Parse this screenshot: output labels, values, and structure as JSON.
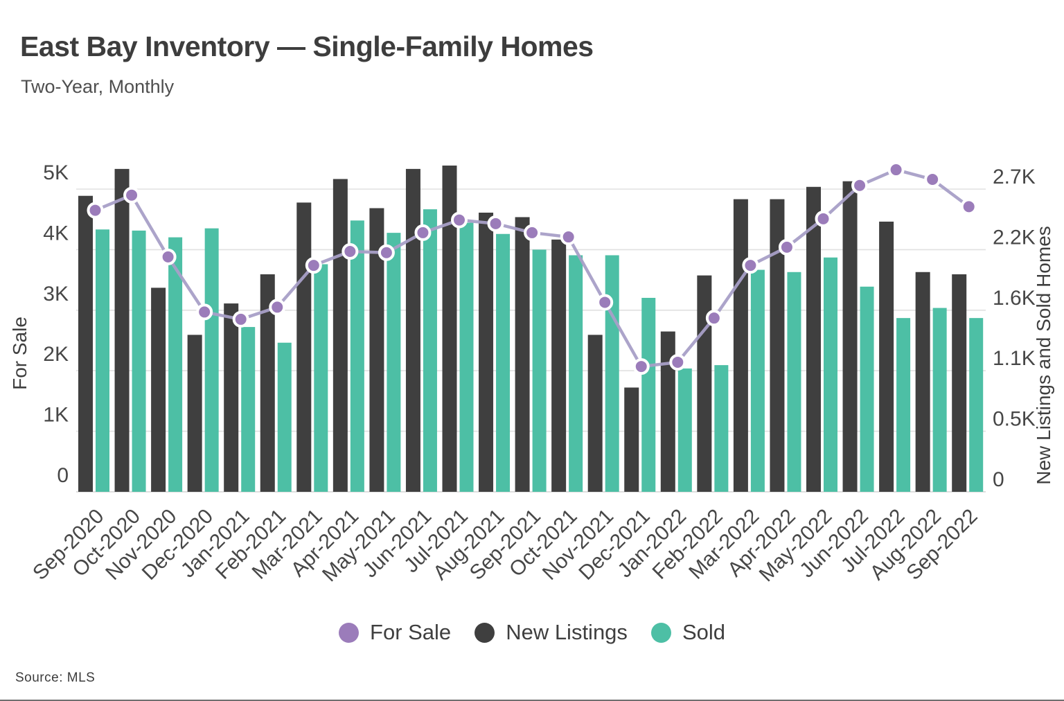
{
  "header": {
    "title": "East Bay Inventory — Single-Family Homes",
    "subtitle": "Two-Year, Monthly"
  },
  "source": {
    "text": "Source:  MLS"
  },
  "chart_data": {
    "type": "combo-bar-line",
    "title": "East Bay Inventory — Single-Family Homes",
    "subtitle": "Two-Year, Monthly",
    "grid": true,
    "grid_color": "#e0e0e0",
    "legend_position": "bottom",
    "categories": [
      "Sep-2020",
      "Oct-2020",
      "Nov-2020",
      "Dec-2020",
      "Jan-2021",
      "Feb-2021",
      "Mar-2021",
      "Apr-2021",
      "May-2021",
      "Jun-2021",
      "Jul-2021",
      "Aug-2021",
      "Sep-2021",
      "Oct-2021",
      "Nov-2021",
      "Dec-2021",
      "Jan-2022",
      "Feb-2022",
      "Mar-2022",
      "Apr-2022",
      "May-2022",
      "Jun-2022",
      "Jul-2022",
      "Aug-2022",
      "Sep-2022"
    ],
    "left_axis": {
      "label": "For Sale",
      "range": [
        0,
        5000
      ],
      "tick_labels": [
        "0",
        "1K",
        "2K",
        "3K",
        "4K",
        "5K"
      ],
      "tick_values": [
        0,
        1000,
        2000,
        3000,
        4000,
        5000
      ]
    },
    "right_axis": {
      "label": "New Listings and Sold Homes",
      "range": [
        0,
        2700
      ],
      "tick_labels": [
        "0",
        "0.5K",
        "1.1K",
        "1.6K",
        "2.2K",
        "2.7K"
      ],
      "tick_values": [
        0,
        540,
        1080,
        1620,
        2160,
        2700
      ]
    },
    "series": [
      {
        "name": "For Sale",
        "type": "line",
        "axis": "left",
        "color": "#9b7cba",
        "line_color": "#a89fc7",
        "values": [
          4650,
          4900,
          3880,
          2970,
          2850,
          3050,
          3740,
          3970,
          3950,
          4280,
          4490,
          4430,
          4280,
          4210,
          3130,
          2070,
          2140,
          2870,
          3740,
          4040,
          4510,
          5060,
          5320,
          5160,
          4710
        ]
      },
      {
        "name": "New Listings",
        "type": "bar",
        "axis": "right",
        "color": "#3f3f3f",
        "values": [
          2640,
          2880,
          1820,
          1400,
          1680,
          1940,
          2580,
          2790,
          2530,
          2880,
          2910,
          2490,
          2450,
          2250,
          1400,
          930,
          1430,
          1930,
          2610,
          2610,
          2720,
          2770,
          2410,
          1960,
          1940
        ]
      },
      {
        "name": "Sold",
        "type": "bar",
        "axis": "right",
        "color": "#4dbfa5",
        "values": [
          2340,
          2330,
          2270,
          2350,
          1470,
          1330,
          2030,
          2420,
          2310,
          2520,
          2400,
          2300,
          2160,
          2110,
          2110,
          1730,
          1100,
          1130,
          1980,
          1960,
          2090,
          1830,
          1550,
          1640,
          1550
        ]
      }
    ]
  }
}
